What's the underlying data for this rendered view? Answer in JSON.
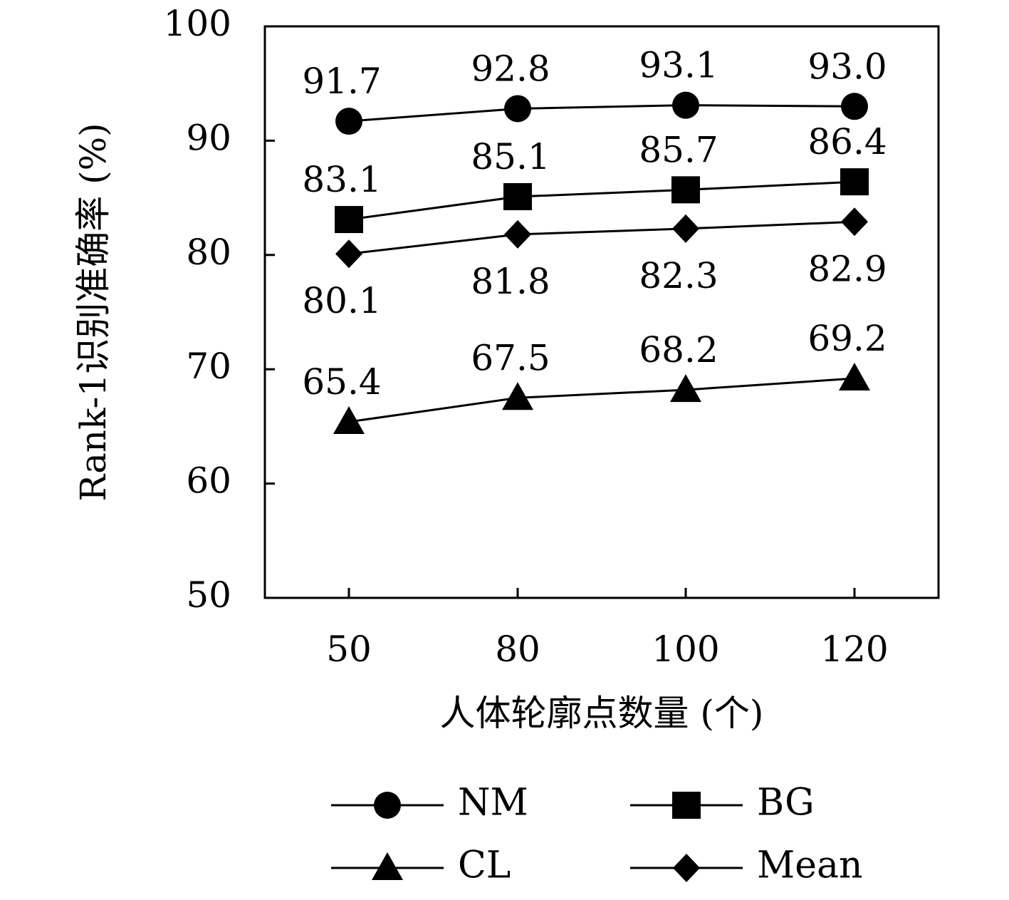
{
  "chart_data": {
    "type": "line",
    "title": "",
    "xlabel": "人体轮廓点数量 (个)",
    "ylabel": "Rank-1识别准确率 (%)",
    "categories": [
      "50",
      "80",
      "100",
      "120"
    ],
    "ylim": [
      50,
      100
    ],
    "yticks": [
      "50",
      "60",
      "70",
      "80",
      "90",
      "100"
    ],
    "grid": false,
    "legend_position": "bottom",
    "series": [
      {
        "name": "NM",
        "marker": "circle",
        "values": [
          91.7,
          92.8,
          93.1,
          93.0
        ],
        "labels": [
          "91.7",
          "92.8",
          "93.1",
          "93.0"
        ],
        "label_position": "above"
      },
      {
        "name": "BG",
        "marker": "square",
        "values": [
          83.1,
          85.1,
          85.7,
          86.4
        ],
        "labels": [
          "83.1",
          "85.1",
          "85.7",
          "86.4"
        ],
        "label_position": "above"
      },
      {
        "name": "CL",
        "marker": "triangle",
        "values": [
          65.4,
          67.5,
          68.2,
          69.2
        ],
        "labels": [
          "65.4",
          "67.5",
          "68.2",
          "69.2"
        ],
        "label_position": "above"
      },
      {
        "name": "Mean",
        "marker": "diamond",
        "values": [
          80.1,
          81.8,
          82.3,
          82.9
        ],
        "labels": [
          "80.1",
          "81.8",
          "82.3",
          "82.9"
        ],
        "label_position": "below"
      }
    ],
    "colors": {
      "line": "#000000",
      "marker": "#000000",
      "frame": "#000000"
    }
  }
}
